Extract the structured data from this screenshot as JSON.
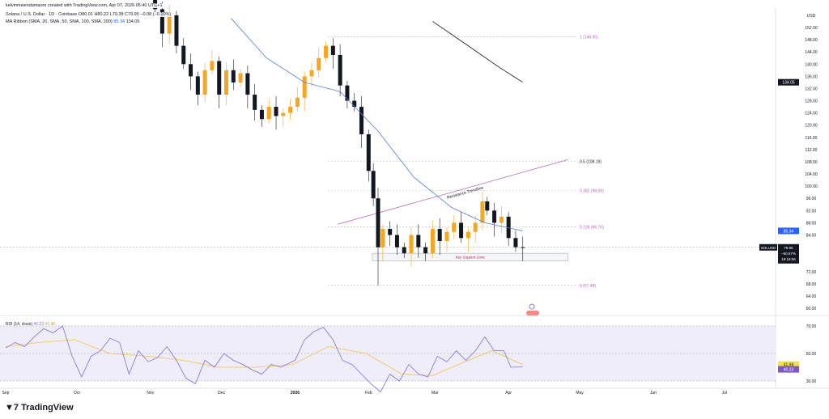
{
  "header": {
    "credit": "kelvinmwendamaore created with TradingView.com, Apr 07, 2026 05:40 UTC+1",
    "symbol_line": "Solana / U.S. Dollar · 1D · Coinbase  O80.01  H80.22  L79.38  C79.95  −0.08 (−0.10%)",
    "ma_line": "MA Ribbon (SMA, 20, SMA, 50, SMA, 100, SMA, 200)",
    "ma_val1": "85.34",
    "ma_val2": "134.05"
  },
  "brand": "TradingView",
  "colors": {
    "up": "#f5a623",
    "down": "#131722",
    "sma50": "#5b7bd5",
    "sma200": "#131722",
    "trend": "#b06ab3",
    "rsi": "#7e6fd8",
    "rsi_ma": "#f0c34a",
    "fib_label": "#b06ab3"
  },
  "chart_data": {
    "type": "candlestick",
    "currency": "USD",
    "ylim": [
      58,
      154
    ],
    "yticks": [
      152,
      148,
      144,
      140,
      136,
      132,
      128,
      124,
      120,
      116,
      112,
      108,
      104,
      100,
      96,
      92,
      88,
      84,
      72,
      68,
      64,
      60
    ],
    "xticks": [
      "Sep",
      "Oct",
      "Nov",
      "Dec",
      "2026",
      "Feb",
      "Mar",
      "Apr",
      "May",
      "Jun",
      "Jul"
    ],
    "xtick_dates": [
      "2025-09-01",
      "2025-10-01",
      "2025-11-01",
      "2025-12-01",
      "2026-01-01",
      "2026-02-01",
      "2026-03-01",
      "2026-04-01",
      "2026-05-01",
      "2026-06-01",
      "2026-07-01"
    ],
    "closes": [
      [
        "2025-11-03",
        158
      ],
      [
        "2025-11-06",
        150
      ],
      [
        "2025-11-09",
        156
      ],
      [
        "2025-11-12",
        146
      ],
      [
        "2025-11-15",
        140
      ],
      [
        "2025-11-18",
        136
      ],
      [
        "2025-11-21",
        130
      ],
      [
        "2025-11-24",
        138
      ],
      [
        "2025-11-27",
        141
      ],
      [
        "2025-11-30",
        130
      ],
      [
        "2025-12-03",
        138
      ],
      [
        "2025-12-06",
        134
      ],
      [
        "2025-12-09",
        137
      ],
      [
        "2025-12-12",
        130
      ],
      [
        "2025-12-15",
        125
      ],
      [
        "2025-12-18",
        122
      ],
      [
        "2025-12-21",
        126
      ],
      [
        "2025-12-24",
        123
      ],
      [
        "2025-12-27",
        124
      ],
      [
        "2025-12-30",
        126
      ],
      [
        "2026-01-02",
        129
      ],
      [
        "2026-01-05",
        136
      ],
      [
        "2026-01-08",
        138
      ],
      [
        "2026-01-11",
        142
      ],
      [
        "2026-01-14",
        146
      ],
      [
        "2026-01-17",
        143
      ],
      [
        "2026-01-20",
        133
      ],
      [
        "2026-01-23",
        128
      ],
      [
        "2026-01-26",
        126
      ],
      [
        "2026-01-29",
        117
      ],
      [
        "2026-02-01",
        105
      ],
      [
        "2026-02-03",
        96
      ],
      [
        "2026-02-05",
        80
      ],
      [
        "2026-02-07",
        86
      ],
      [
        "2026-02-10",
        84
      ],
      [
        "2026-02-13",
        80
      ],
      [
        "2026-02-16",
        78
      ],
      [
        "2026-02-19",
        84
      ],
      [
        "2026-02-22",
        80
      ],
      [
        "2026-02-25",
        78
      ],
      [
        "2026-02-28",
        86
      ],
      [
        "2026-03-03",
        82
      ],
      [
        "2026-03-06",
        85
      ],
      [
        "2026-03-09",
        88
      ],
      [
        "2026-03-12",
        83
      ],
      [
        "2026-03-15",
        85
      ],
      [
        "2026-03-18",
        88
      ],
      [
        "2026-03-21",
        95
      ],
      [
        "2026-03-23",
        92
      ],
      [
        "2026-03-26",
        88
      ],
      [
        "2026-03-29",
        90
      ],
      [
        "2026-04-01",
        83
      ],
      [
        "2026-04-04",
        80
      ],
      [
        "2026-04-07",
        79.95
      ]
    ],
    "sma50": [
      [
        "2025-12-05",
        155
      ],
      [
        "2025-12-20",
        142
      ],
      [
        "2026-01-05",
        134
      ],
      [
        "2026-01-20",
        131
      ],
      [
        "2026-02-05",
        118
      ],
      [
        "2026-02-20",
        103
      ],
      [
        "2026-03-08",
        93
      ],
      [
        "2026-03-22",
        88
      ],
      [
        "2026-04-07",
        85.34
      ]
    ],
    "sma200": [
      [
        "2026-02-28",
        154
      ],
      [
        "2026-03-15",
        146
      ],
      [
        "2026-03-28",
        139
      ],
      [
        "2026-04-07",
        134.05
      ]
    ],
    "fib": [
      {
        "label": "1 (148.90)",
        "value": 148.9
      },
      {
        "label": "0.5 (108.19)",
        "value": 108.19
      },
      {
        "label": "0.382 (98.58)",
        "value": 98.58
      },
      {
        "label": "0.236 (86.70)",
        "value": 86.7
      },
      {
        "label": "0 (67.48)",
        "value": 67.48
      }
    ],
    "trendline": {
      "label": "Resistance Trendline",
      "from": [
        "2026-01-19",
        87.5
      ],
      "to": [
        "2026-04-26",
        108.7
      ]
    },
    "support_zone": {
      "label": "Key Support Zone",
      "from": "2026-02-01",
      "to": "2026-04-26",
      "high": 78,
      "low": 75.5
    },
    "price_tags": [
      {
        "text": "134.05",
        "value": 134.05,
        "bg": "#131722"
      },
      {
        "text": "85.34",
        "value": 85.34,
        "bg": "#2962ff"
      }
    ],
    "last": {
      "symbol": "SOLUSD",
      "price": "79.95",
      "change": "−60.57%",
      "countdown": "19:19:06",
      "value": 79.95
    },
    "rsi": {
      "title": "RSI (14, close)",
      "value": "40.23",
      "ma_value": "41.98",
      "levels": [
        70,
        50,
        30
      ],
      "ylim": [
        28,
        72
      ],
      "values": [
        [
          "2025-09-01",
          54
        ],
        [
          "2025-09-05",
          58
        ],
        [
          "2025-09-09",
          55
        ],
        [
          "2025-09-13",
          62
        ],
        [
          "2025-09-17",
          68
        ],
        [
          "2025-09-21",
          65
        ],
        [
          "2025-09-25",
          70
        ],
        [
          "2025-09-29",
          48
        ],
        [
          "2025-10-03",
          33
        ],
        [
          "2025-10-07",
          48
        ],
        [
          "2025-10-11",
          52
        ],
        [
          "2025-10-15",
          61
        ],
        [
          "2025-10-19",
          58
        ],
        [
          "2025-10-23",
          35
        ],
        [
          "2025-10-27",
          52
        ],
        [
          "2025-10-31",
          44
        ],
        [
          "2025-11-04",
          47
        ],
        [
          "2025-11-08",
          55
        ],
        [
          "2025-11-12",
          45
        ],
        [
          "2025-11-16",
          32
        ],
        [
          "2025-11-20",
          28
        ],
        [
          "2025-11-24",
          45
        ],
        [
          "2025-11-28",
          40
        ],
        [
          "2025-12-02",
          50
        ],
        [
          "2025-12-06",
          45
        ],
        [
          "2025-12-10",
          42
        ],
        [
          "2025-12-14",
          38
        ],
        [
          "2025-12-18",
          35
        ],
        [
          "2025-12-22",
          42
        ],
        [
          "2025-12-26",
          40
        ],
        [
          "2026-01-01",
          45
        ],
        [
          "2026-01-05",
          60
        ],
        [
          "2026-01-09",
          66
        ],
        [
          "2026-01-13",
          69
        ],
        [
          "2026-01-17",
          60
        ],
        [
          "2026-01-21",
          45
        ],
        [
          "2026-01-25",
          42
        ],
        [
          "2026-01-29",
          35
        ],
        [
          "2026-02-02",
          28
        ],
        [
          "2026-02-06",
          22
        ],
        [
          "2026-02-10",
          35
        ],
        [
          "2026-02-14",
          30
        ],
        [
          "2026-02-18",
          42
        ],
        [
          "2026-02-22",
          35
        ],
        [
          "2026-02-26",
          33
        ],
        [
          "2026-03-02",
          48
        ],
        [
          "2026-03-06",
          44
        ],
        [
          "2026-03-10",
          52
        ],
        [
          "2026-03-14",
          45
        ],
        [
          "2026-03-18",
          52
        ],
        [
          "2026-03-22",
          62
        ],
        [
          "2026-03-26",
          52
        ],
        [
          "2026-03-30",
          52
        ],
        [
          "2026-04-02",
          40
        ],
        [
          "2026-04-07",
          40.23
        ]
      ],
      "ma": [
        [
          "2025-09-01",
          55
        ],
        [
          "2025-09-15",
          58
        ],
        [
          "2025-09-30",
          60
        ],
        [
          "2025-10-15",
          50
        ],
        [
          "2025-10-31",
          48
        ],
        [
          "2025-11-15",
          45
        ],
        [
          "2025-11-30",
          40
        ],
        [
          "2025-12-15",
          40
        ],
        [
          "2025-12-31",
          42
        ],
        [
          "2026-01-15",
          55
        ],
        [
          "2026-01-31",
          50
        ],
        [
          "2026-02-15",
          35
        ],
        [
          "2026-02-28",
          34
        ],
        [
          "2026-03-15",
          45
        ],
        [
          "2026-03-25",
          52
        ],
        [
          "2026-04-07",
          41.98
        ]
      ]
    }
  }
}
